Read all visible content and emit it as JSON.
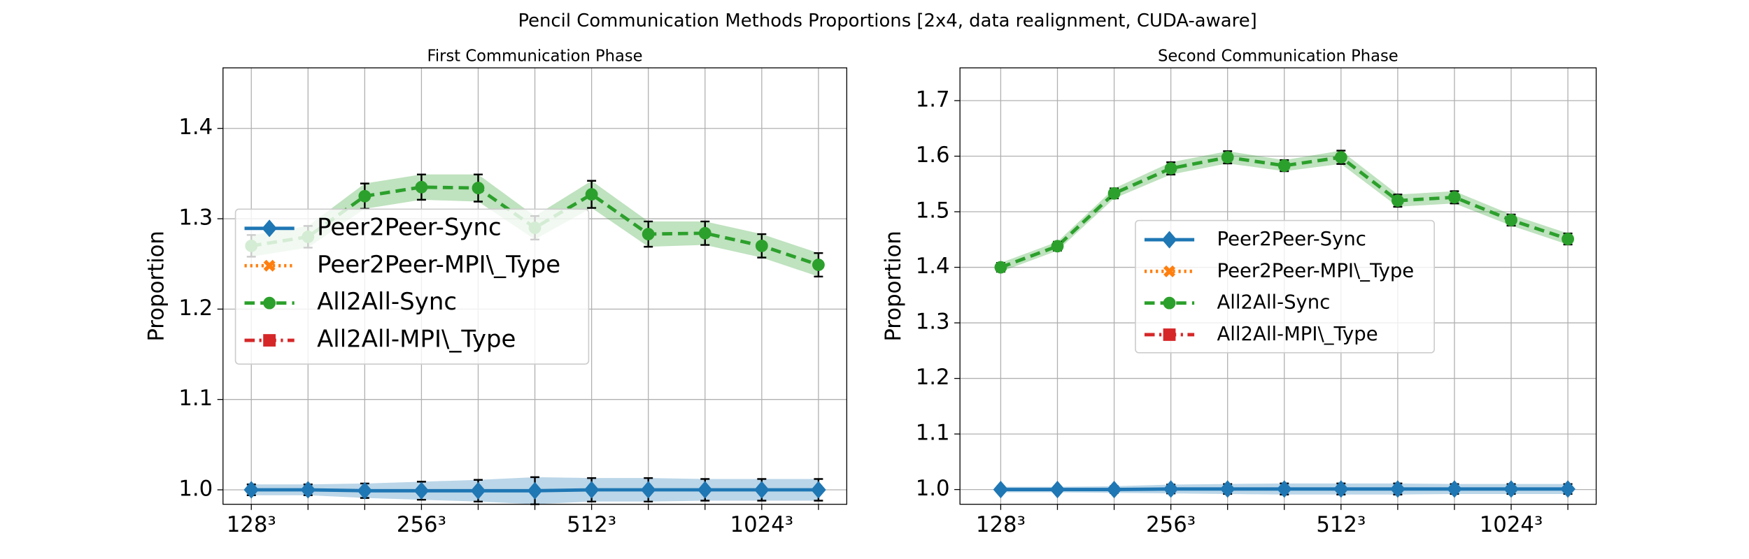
{
  "title": "Pencil Communication Methods Proportions [2x4, data realignment, CUDA-aware]",
  "chart_data": [
    {
      "type": "line",
      "title": "First Communication Phase",
      "ylabel": "Proportion",
      "categories": [
        "128³",
        null,
        null,
        "256³",
        null,
        null,
        "512³",
        null,
        null,
        "1024³",
        null
      ],
      "ylim": [
        0.984,
        1.467
      ],
      "yticks": [
        {
          "value": 1,
          "label": "1.0"
        },
        1.1,
        1.2,
        1.3,
        1.4
      ],
      "grid": true,
      "legend": "center left",
      "series": [
        {
          "name": "Peer2Peer-Sync",
          "color": "#1f77b4",
          "marker": "diamond",
          "linestyle": "solid",
          "values": [
            1.0,
            1.0,
            0.999,
            0.999,
            0.999,
            0.999,
            1.0,
            1.0,
            1.0,
            1.0,
            1.0
          ],
          "errors": [
            0.006,
            0.006,
            0.008,
            0.01,
            0.012,
            0.015,
            0.013,
            0.013,
            0.012,
            0.012,
            0.012
          ]
        },
        {
          "name": "Peer2Peer-MPI\\_Type",
          "color": "#ff7f0e",
          "marker": "x",
          "linestyle": "dotted",
          "values": [
            null,
            null,
            null,
            null,
            null,
            null,
            null,
            null,
            null,
            null,
            null
          ],
          "errors": [
            null,
            null,
            null,
            null,
            null,
            null,
            null,
            null,
            null,
            null,
            null
          ]
        },
        {
          "name": "All2All-Sync",
          "color": "#2ca02c",
          "marker": "circle",
          "linestyle": "dashed",
          "values": [
            1.27,
            1.28,
            1.325,
            1.335,
            1.334,
            1.29,
            1.327,
            1.283,
            1.284,
            1.27,
            1.249
          ],
          "errors": [
            0.012,
            0.012,
            0.014,
            0.014,
            0.015,
            0.013,
            0.015,
            0.014,
            0.013,
            0.013,
            0.013
          ]
        },
        {
          "name": "All2All-MPI\\_Type",
          "color": "#d62728",
          "marker": "square",
          "linestyle": "dashdot",
          "values": [
            null,
            null,
            null,
            null,
            null,
            null,
            null,
            null,
            null,
            null,
            null
          ],
          "errors": [
            null,
            null,
            null,
            null,
            null,
            null,
            null,
            null,
            null,
            null,
            null
          ]
        }
      ]
    },
    {
      "type": "line",
      "title": "Second Communication Phase",
      "ylabel": "Proportion",
      "categories": [
        "128³",
        null,
        null,
        "256³",
        null,
        null,
        "512³",
        null,
        null,
        "1024³",
        null
      ],
      "ylim": [
        0.9735,
        1.759
      ],
      "yticks": [
        {
          "value": 1,
          "label": "1.0"
        },
        1.1,
        1.2,
        1.3,
        1.4,
        1.5,
        1.6,
        1.7
      ],
      "grid": true,
      "legend": "center",
      "series": [
        {
          "name": "Peer2Peer-Sync",
          "color": "#1f77b4",
          "marker": "diamond",
          "linestyle": "solid",
          "values": [
            1.0,
            1.0,
            1.0,
            1.001,
            1.001,
            1.001,
            1.001,
            1.001,
            1.001,
            1.001,
            1.001
          ],
          "errors": [
            0.005,
            0.005,
            0.006,
            0.008,
            0.009,
            0.01,
            0.01,
            0.01,
            0.009,
            0.009,
            0.009
          ]
        },
        {
          "name": "Peer2Peer-MPI\\_Type",
          "color": "#ff7f0e",
          "marker": "x",
          "linestyle": "dotted",
          "values": [
            null,
            null,
            null,
            null,
            null,
            null,
            null,
            null,
            null,
            null,
            null
          ],
          "errors": [
            null,
            null,
            null,
            null,
            null,
            null,
            null,
            null,
            null,
            null,
            null
          ]
        },
        {
          "name": "All2All-Sync",
          "color": "#2ca02c",
          "marker": "circle",
          "linestyle": "dashed",
          "values": [
            1.4,
            1.438,
            1.533,
            1.578,
            1.598,
            1.583,
            1.598,
            1.52,
            1.526,
            1.485,
            1.451
          ],
          "errors": [
            0.008,
            0.008,
            0.009,
            0.011,
            0.011,
            0.01,
            0.012,
            0.011,
            0.011,
            0.01,
            0.01
          ]
        },
        {
          "name": "All2All-MPI\\_Type",
          "color": "#d62728",
          "marker": "square",
          "linestyle": "dashdot",
          "values": [
            null,
            null,
            null,
            null,
            null,
            null,
            null,
            null,
            null,
            null,
            null
          ],
          "errors": [
            null,
            null,
            null,
            null,
            null,
            null,
            null,
            null,
            null,
            null,
            null
          ]
        }
      ]
    }
  ]
}
